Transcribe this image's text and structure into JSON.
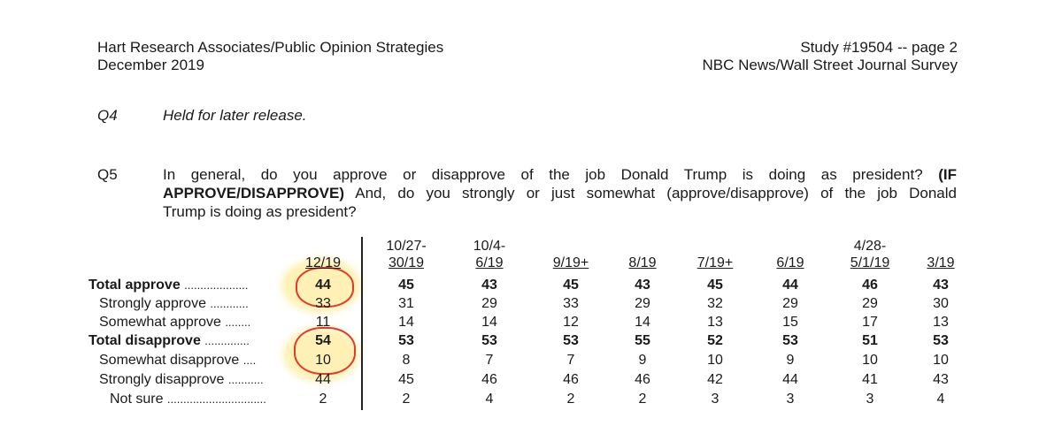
{
  "header": {
    "org": "Hart Research Associates/Public Opinion Strategies",
    "date": "December 2019",
    "study": "Study #19504 -- page 2",
    "survey": "NBC News/Wall Street Journal Survey"
  },
  "q4": {
    "label": "Q4",
    "text": "Held for later release."
  },
  "q5": {
    "label": "Q5",
    "line1": "In general, do you approve or disapprove of the job Donald Trump is doing as president?",
    "line1_bold": "(IF",
    "line2_bold": "APPROVE/DISAPPROVE)",
    "line2": "And, do you strongly or just somewhat (approve/disapprove) of the job Donald",
    "line3": "Trump is doing as president?"
  },
  "table": {
    "columns": [
      {
        "top": "",
        "bottom": "12/19"
      },
      {
        "top": "10/27-",
        "bottom": "30/19"
      },
      {
        "top": "10/4-",
        "bottom": "6/19"
      },
      {
        "top": "",
        "bottom": "9/19+"
      },
      {
        "top": "",
        "bottom": "8/19"
      },
      {
        "top": "",
        "bottom": "7/19+"
      },
      {
        "top": "",
        "bottom": "6/19"
      },
      {
        "top": "4/28-",
        "bottom": "5/1/19"
      },
      {
        "top": "",
        "bottom": "3/19"
      }
    ],
    "rows": [
      {
        "label": "Total approve",
        "dots": "....................",
        "bold": true,
        "values": [
          "44",
          "45",
          "43",
          "45",
          "43",
          "45",
          "44",
          "46",
          "43"
        ]
      },
      {
        "label": "Strongly approve",
        "dots": "............",
        "bold": false,
        "values": [
          "33",
          "31",
          "29",
          "33",
          "29",
          "32",
          "29",
          "29",
          "30"
        ]
      },
      {
        "label": "Somewhat approve",
        "dots": "........",
        "bold": false,
        "values": [
          "11",
          "14",
          "14",
          "12",
          "14",
          "13",
          "15",
          "17",
          "13"
        ]
      },
      {
        "label": "Total disapprove",
        "dots": "..............",
        "bold": true,
        "values": [
          "54",
          "53",
          "53",
          "53",
          "55",
          "52",
          "53",
          "51",
          "53"
        ]
      },
      {
        "label": "Somewhat disapprove",
        "dots": "....",
        "bold": false,
        "values": [
          "10",
          "8",
          "7",
          "7",
          "9",
          "10",
          "9",
          "10",
          "10"
        ]
      },
      {
        "label": "Strongly disapprove",
        "dots": "...........",
        "bold": false,
        "values": [
          "44",
          "45",
          "46",
          "46",
          "46",
          "42",
          "44",
          "41",
          "43"
        ]
      },
      {
        "label": "Not sure",
        "dots": "...............................",
        "bold": false,
        "values": [
          "2",
          "2",
          "4",
          "2",
          "2",
          "3",
          "3",
          "3",
          "4"
        ]
      }
    ]
  }
}
